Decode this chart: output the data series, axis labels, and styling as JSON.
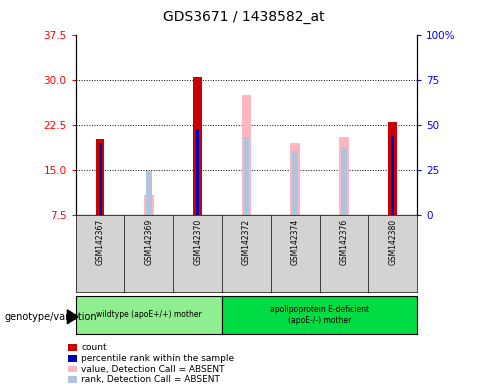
{
  "title": "GDS3671 / 1438582_at",
  "samples": [
    "GSM142367",
    "GSM142369",
    "GSM142370",
    "GSM142372",
    "GSM142374",
    "GSM142376",
    "GSM142380"
  ],
  "ylim_left": [
    7.5,
    37.5
  ],
  "ylim_right": [
    0,
    100
  ],
  "yticks_left": [
    7.5,
    15.0,
    22.5,
    30.0,
    37.5
  ],
  "yticks_right": [
    0,
    25,
    50,
    75,
    100
  ],
  "bars": {
    "GSM142367": {
      "red_val": 20.2,
      "blue_val": 19.4,
      "pink_val": null,
      "lightblue_val": null
    },
    "GSM142369": {
      "red_val": null,
      "blue_val": null,
      "pink_val": 10.8,
      "lightblue_val": 14.8
    },
    "GSM142370": {
      "red_val": 30.5,
      "blue_val": 21.8,
      "pink_val": null,
      "lightblue_val": null
    },
    "GSM142372": {
      "red_val": null,
      "blue_val": null,
      "pink_val": 27.5,
      "lightblue_val": 20.5
    },
    "GSM142374": {
      "red_val": null,
      "blue_val": null,
      "pink_val": 19.5,
      "lightblue_val": 18.2
    },
    "GSM142376": {
      "red_val": null,
      "blue_val": null,
      "pink_val": 20.5,
      "lightblue_val": 18.8
    },
    "GSM142380": {
      "red_val": 23.0,
      "blue_val": 20.6,
      "pink_val": null,
      "lightblue_val": null
    }
  },
  "baseline": 7.5,
  "red_color": "#CC0000",
  "blue_color": "#0000BB",
  "pink_color": "#FFB6C1",
  "lightblue_color": "#B0C4DE",
  "group1_label": "wildtype (apoE+/+) mother",
  "group1_color": "#90EE90",
  "group2_label": "apolipoprotein E-deficient\n(apoE-/-) mother",
  "group2_color": "#00DD44",
  "legend_items": [
    {
      "color": "#CC0000",
      "label": "count"
    },
    {
      "color": "#0000BB",
      "label": "percentile rank within the sample"
    },
    {
      "color": "#FFB6C1",
      "label": "value, Detection Call = ABSENT"
    },
    {
      "color": "#B0C4DE",
      "label": "rank, Detection Call = ABSENT"
    }
  ]
}
